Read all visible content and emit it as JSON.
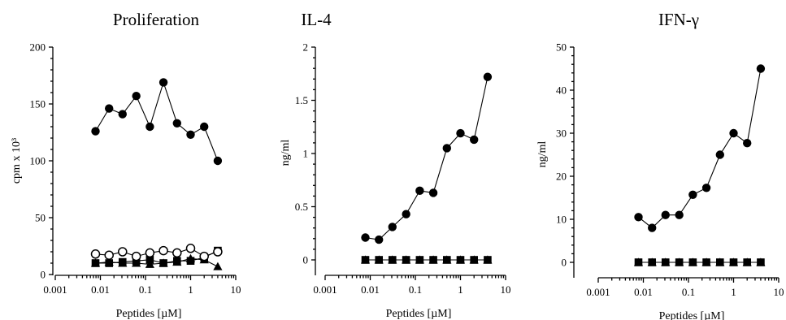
{
  "chart_data": [
    {
      "type": "line",
      "title": "Proliferation",
      "xlabel": "Peptides [µM]",
      "ylabel": "cpm x 10³",
      "xscale": "log",
      "xlim": [
        0.001,
        10
      ],
      "ylim": [
        0,
        200
      ],
      "xticks": [
        "0.001",
        "0.01",
        "0.1",
        "1",
        "10"
      ],
      "yticks": [
        "0",
        "50",
        "100",
        "150",
        "200"
      ],
      "x": [
        0.0078,
        0.0156,
        0.031,
        0.0625,
        0.125,
        0.25,
        0.5,
        1,
        2,
        4
      ],
      "series": [
        {
          "marker": "filled-circle",
          "values": [
            126,
            146,
            141,
            157,
            130,
            169,
            133,
            123,
            130,
            100
          ]
        },
        {
          "marker": "open-circle",
          "values": [
            18,
            17,
            20,
            16,
            19,
            21,
            19,
            23,
            16,
            20
          ]
        },
        {
          "marker": "filled-square",
          "values": [
            10,
            10,
            11,
            12,
            13,
            10,
            12,
            12,
            15,
            21
          ]
        },
        {
          "marker": "filled-triangle",
          "values": [
            10,
            11,
            10,
            10,
            9,
            10,
            11,
            14,
            13,
            7
          ]
        }
      ]
    },
    {
      "type": "line",
      "title": "IL-4",
      "xlabel": "Peptides [µM]",
      "ylabel": "ng/ml",
      "xscale": "log",
      "xlim": [
        0.001,
        10
      ],
      "ylim": [
        0,
        2
      ],
      "xticks": [
        "0.001",
        "0.01",
        "0.1",
        "1",
        "10"
      ],
      "yticks": [
        "0",
        "0.5",
        "1",
        "1.5",
        "2"
      ],
      "x": [
        0.0078,
        0.0156,
        0.031,
        0.0625,
        0.125,
        0.25,
        0.5,
        1,
        2,
        4
      ],
      "series": [
        {
          "marker": "filled-circle",
          "values": [
            0.21,
            0.19,
            0.31,
            0.43,
            0.65,
            0.63,
            1.05,
            1.19,
            1.13,
            1.72
          ]
        },
        {
          "marker": "filled-square",
          "values": [
            0,
            0,
            0,
            0,
            0,
            0,
            0,
            0,
            0,
            0
          ]
        },
        {
          "marker": "filled-triangle",
          "values": [
            0,
            0,
            0,
            0,
            0,
            0,
            0,
            0,
            0,
            0
          ]
        }
      ]
    },
    {
      "type": "line",
      "title": "IFN-γ",
      "xlabel": "Peptides [µM]",
      "ylabel": "ng/ml",
      "xscale": "log",
      "xlim": [
        0.001,
        10
      ],
      "ylim": [
        0,
        50
      ],
      "xticks": [
        "0.001",
        "0.01",
        "0.1",
        "1",
        "10"
      ],
      "yticks": [
        "0",
        "10",
        "20",
        "30",
        "40",
        "50"
      ],
      "x": [
        0.0078,
        0.0156,
        0.031,
        0.0625,
        0.125,
        0.25,
        0.5,
        1,
        2,
        4
      ],
      "series": [
        {
          "marker": "filled-circle",
          "values": [
            10.5,
            8,
            11,
            11,
            15.7,
            17.3,
            25,
            30,
            27.7,
            45
          ]
        },
        {
          "marker": "filled-square",
          "values": [
            0,
            0,
            0,
            0,
            0,
            0,
            0,
            0,
            0,
            0
          ]
        },
        {
          "marker": "filled-triangle",
          "values": [
            0,
            0,
            0,
            0,
            0,
            0,
            0,
            0,
            0,
            0
          ]
        }
      ]
    }
  ]
}
